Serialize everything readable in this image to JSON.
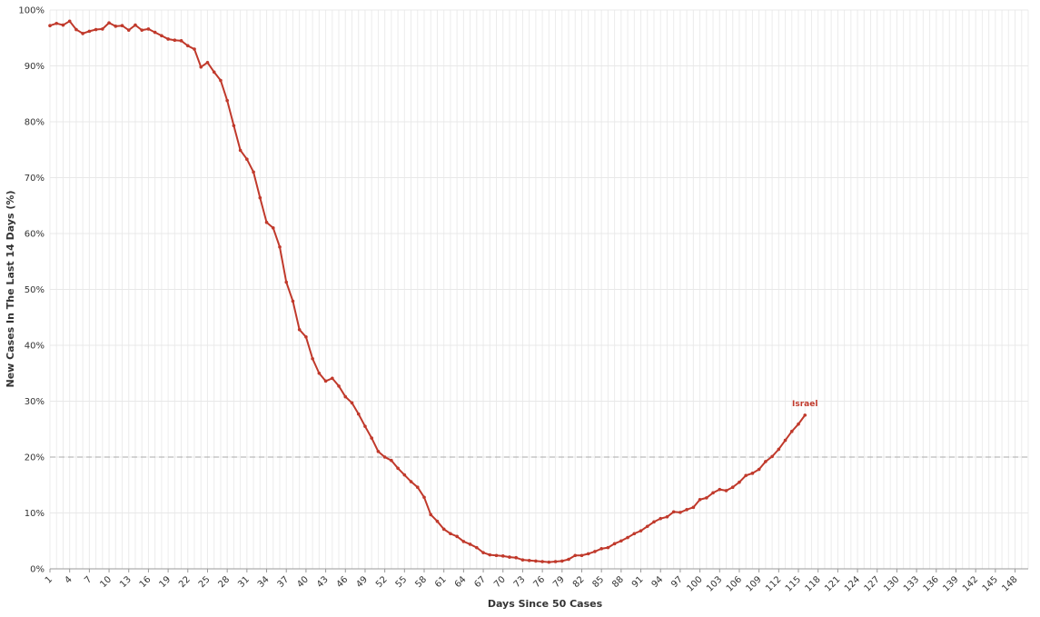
{
  "chart_data": {
    "type": "line",
    "xlabel": "Days Since 50 Cases",
    "ylabel": "New Cases In The Last 14 Days (%)",
    "x": [
      1,
      2,
      3,
      4,
      5,
      6,
      7,
      8,
      9,
      10,
      11,
      12,
      13,
      14,
      15,
      16,
      17,
      18,
      19,
      20,
      21,
      22,
      23,
      24,
      25,
      26,
      27,
      28,
      29,
      30,
      31,
      32,
      33,
      34,
      35,
      36,
      37,
      38,
      39,
      40,
      41,
      42,
      43,
      44,
      45,
      46,
      47,
      48,
      49,
      50,
      51,
      52,
      53,
      54,
      55,
      56,
      57,
      58,
      59,
      60,
      61,
      62,
      63,
      64,
      65,
      66,
      67,
      68,
      69,
      70,
      71,
      72,
      73,
      74,
      75,
      76,
      77,
      78,
      79,
      80,
      81,
      82,
      83,
      84,
      85,
      86,
      87,
      88,
      89,
      90,
      91,
      92,
      93,
      94,
      95,
      96,
      97,
      98,
      99,
      100,
      101,
      102,
      103,
      104,
      105,
      106,
      107,
      108,
      109,
      110,
      111,
      112,
      113,
      114,
      115,
      116
    ],
    "series": [
      {
        "name": "Israel",
        "color": "#c0392b",
        "values": [
          97.2,
          97.6,
          97.3,
          98.0,
          96.5,
          95.8,
          96.2,
          96.5,
          96.6,
          97.7,
          97.1,
          97.2,
          96.4,
          97.3,
          96.4,
          96.6,
          96.0,
          95.4,
          94.8,
          94.6,
          94.5,
          93.6,
          93.0,
          89.8,
          90.6,
          88.9,
          87.4,
          83.8,
          79.3,
          74.9,
          73.3,
          71.0,
          66.4,
          62.0,
          61.0,
          57.6,
          51.3,
          47.9,
          42.8,
          41.5,
          37.6,
          35.0,
          33.6,
          34.1,
          32.7,
          30.8,
          29.7,
          27.7,
          25.5,
          23.4,
          21.0,
          20.0,
          19.4,
          18.0,
          16.8,
          15.6,
          14.6,
          12.8,
          9.7,
          8.5,
          7.1,
          6.3,
          5.8,
          4.9,
          4.4,
          3.8,
          2.9,
          2.5,
          2.4,
          2.3,
          2.1,
          2.0,
          1.6,
          1.5,
          1.4,
          1.3,
          1.2,
          1.3,
          1.4,
          1.7,
          2.4,
          2.4,
          2.7,
          3.1,
          3.6,
          3.8,
          4.5,
          5.0,
          5.6,
          6.3,
          6.8,
          7.6,
          8.4,
          9.0,
          9.3,
          10.2,
          10.1,
          10.6,
          11.0,
          12.4,
          12.7,
          13.6,
          14.2,
          14.0,
          14.6,
          15.5,
          16.7,
          17.1,
          17.8,
          19.2,
          20.1,
          21.4,
          23.0,
          24.6,
          25.9,
          27.5
        ]
      }
    ],
    "xlim": [
      1,
      150
    ],
    "xticks": [
      1,
      4,
      7,
      10,
      13,
      16,
      19,
      22,
      25,
      28,
      31,
      34,
      37,
      40,
      43,
      46,
      49,
      52,
      55,
      58,
      61,
      64,
      67,
      70,
      73,
      76,
      79,
      82,
      85,
      88,
      91,
      94,
      97,
      100,
      103,
      106,
      109,
      112,
      115,
      118,
      121,
      124,
      127,
      130,
      133,
      136,
      139,
      142,
      145,
      148
    ],
    "ylim": [
      0,
      100
    ],
    "yticks": [
      {
        "value": 0,
        "label": "0%"
      },
      {
        "value": 10,
        "label": "10%"
      },
      {
        "value": 20,
        "label": "20%"
      },
      {
        "value": 30,
        "label": "30%"
      },
      {
        "value": 40,
        "label": "40%"
      },
      {
        "value": 50,
        "label": "50%"
      },
      {
        "value": 60,
        "label": "60%"
      },
      {
        "value": 70,
        "label": "70%"
      },
      {
        "value": 80,
        "label": "80%"
      },
      {
        "value": 90,
        "label": "90%"
      },
      {
        "value": 100,
        "label": "100%"
      }
    ],
    "reference_line": 20,
    "grid": true
  }
}
